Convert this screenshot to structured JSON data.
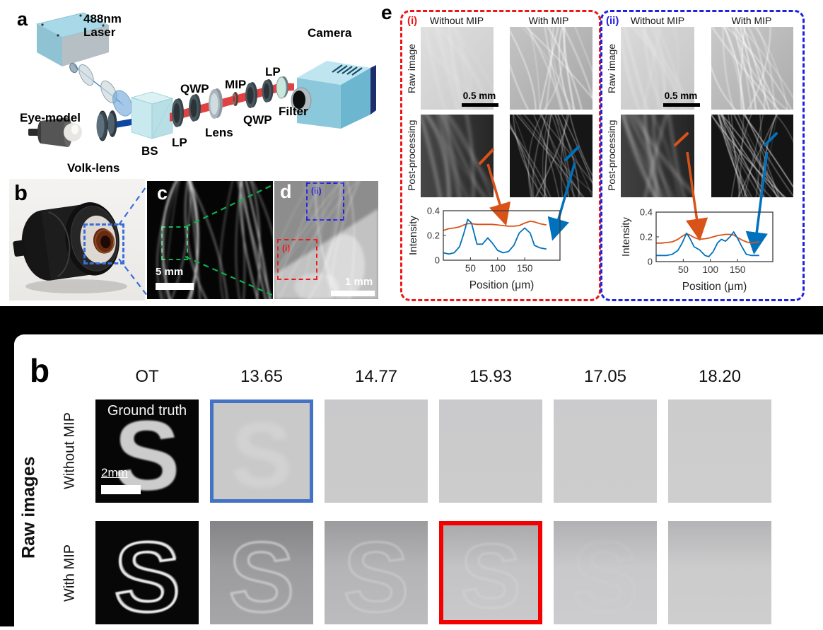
{
  "colors": {
    "orange": "#D95319",
    "blue": "#0072BD",
    "dashed_red": "#F01515",
    "dashed_blue": "#2121E0",
    "dashed_green": "#0DB14B",
    "photo_box_blue": "#3A6FD8",
    "highlight_blue": "#4472C4",
    "highlight_red": "#F40000"
  },
  "figure_top": {
    "panel_a": {
      "label": "a",
      "laser_line1": "488nm",
      "laser_line2": "Laser",
      "camera": "Camera",
      "eye_model": "Eye-model",
      "volk_lens": "Volk-lens",
      "bs": "BS",
      "lp1": "LP",
      "qwp1": "QWP",
      "lens": "Lens",
      "mip": "MIP",
      "qwp2": "QWP",
      "lp2": "LP",
      "filter": "Filter"
    },
    "panel_b": {
      "label": "b"
    },
    "panel_c": {
      "label": "c",
      "scale_bar": "5 mm"
    },
    "panel_d": {
      "label": "d",
      "roi_i": "(i)",
      "roi_ii": "(ii)",
      "scale_bar": "1 mm"
    },
    "panel_e": {
      "label": "e",
      "sub_panels": [
        {
          "tag": "(i)",
          "col_without": "Without MIP",
          "col_with": "With MIP",
          "row_raw": "Raw image",
          "row_post": "Post-processing",
          "scale_bar": "0.5 mm"
        },
        {
          "tag": "(ii)",
          "col_without": "Without MIP",
          "col_with": "With MIP",
          "row_raw": "Raw image",
          "row_post": "Post-processing",
          "scale_bar": "0.5 mm"
        }
      ]
    }
  },
  "chart_data": [
    {
      "type": "line",
      "title": "",
      "xlabel": "Position (μm)",
      "ylabel": "Intensity",
      "xlim": [
        0,
        215
      ],
      "ylim": [
        0,
        0.4
      ],
      "xticks": [
        50,
        100,
        150
      ],
      "yticks": [
        0,
        0.2,
        0.4
      ],
      "grid": false,
      "legend": "none",
      "x": [
        0,
        10,
        20,
        30,
        38,
        45,
        52,
        62,
        72,
        82,
        90,
        100,
        110,
        120,
        130,
        140,
        150,
        160,
        168,
        178,
        190
      ],
      "series": [
        {
          "name": "Without MIP",
          "color": "#D95319",
          "values": [
            0.24,
            0.255,
            0.26,
            0.27,
            0.285,
            0.295,
            0.295,
            0.29,
            0.29,
            0.29,
            0.29,
            0.285,
            0.28,
            0.275,
            0.275,
            0.28,
            0.3,
            0.315,
            0.31,
            0.295,
            0.285
          ]
        },
        {
          "name": "With MIP",
          "color": "#0072BD",
          "values": [
            0.06,
            0.05,
            0.06,
            0.11,
            0.22,
            0.33,
            0.3,
            0.13,
            0.13,
            0.18,
            0.14,
            0.08,
            0.06,
            0.07,
            0.12,
            0.22,
            0.26,
            0.22,
            0.12,
            0.1,
            0.09
          ]
        }
      ]
    },
    {
      "type": "line",
      "title": "",
      "xlabel": "Position (μm)",
      "ylabel": "Intensity",
      "xlim": [
        0,
        215
      ],
      "ylim": [
        0,
        0.4
      ],
      "xticks": [
        50,
        100,
        150
      ],
      "yticks": [
        0,
        0.2,
        0.4
      ],
      "grid": false,
      "legend": "none",
      "x": [
        0,
        10,
        20,
        30,
        40,
        48,
        56,
        62,
        70,
        80,
        90,
        97,
        105,
        113,
        120,
        128,
        136,
        143,
        150,
        158,
        166,
        175,
        190
      ],
      "series": [
        {
          "name": "Without MIP",
          "color": "#D95319",
          "values": [
            0.15,
            0.15,
            0.155,
            0.16,
            0.18,
            0.205,
            0.225,
            0.215,
            0.195,
            0.18,
            0.185,
            0.19,
            0.2,
            0.21,
            0.215,
            0.22,
            0.22,
            0.215,
            0.195,
            0.175,
            0.16,
            0.15,
            0.16
          ]
        },
        {
          "name": "With MIP",
          "color": "#0072BD",
          "values": [
            0.05,
            0.05,
            0.05,
            0.06,
            0.09,
            0.15,
            0.23,
            0.19,
            0.12,
            0.095,
            0.05,
            0.04,
            0.08,
            0.15,
            0.18,
            0.165,
            0.2,
            0.24,
            0.19,
            0.12,
            0.06,
            0.05,
            0.05
          ]
        }
      ]
    }
  ],
  "figure_bottom": {
    "label": "b",
    "group_label": "Raw images",
    "columns": [
      "OT",
      "13.65",
      "14.77",
      "15.93",
      "17.05",
      "18.20"
    ],
    "row_labels": [
      "Without MIP",
      "With MIP"
    ],
    "ground_truth": "Ground truth",
    "scale_bar": "2mm",
    "highlighted_blue": {
      "row": "Without MIP",
      "column": "13.65"
    },
    "highlighted_red": {
      "row": "With MIP",
      "column": "15.93"
    }
  }
}
